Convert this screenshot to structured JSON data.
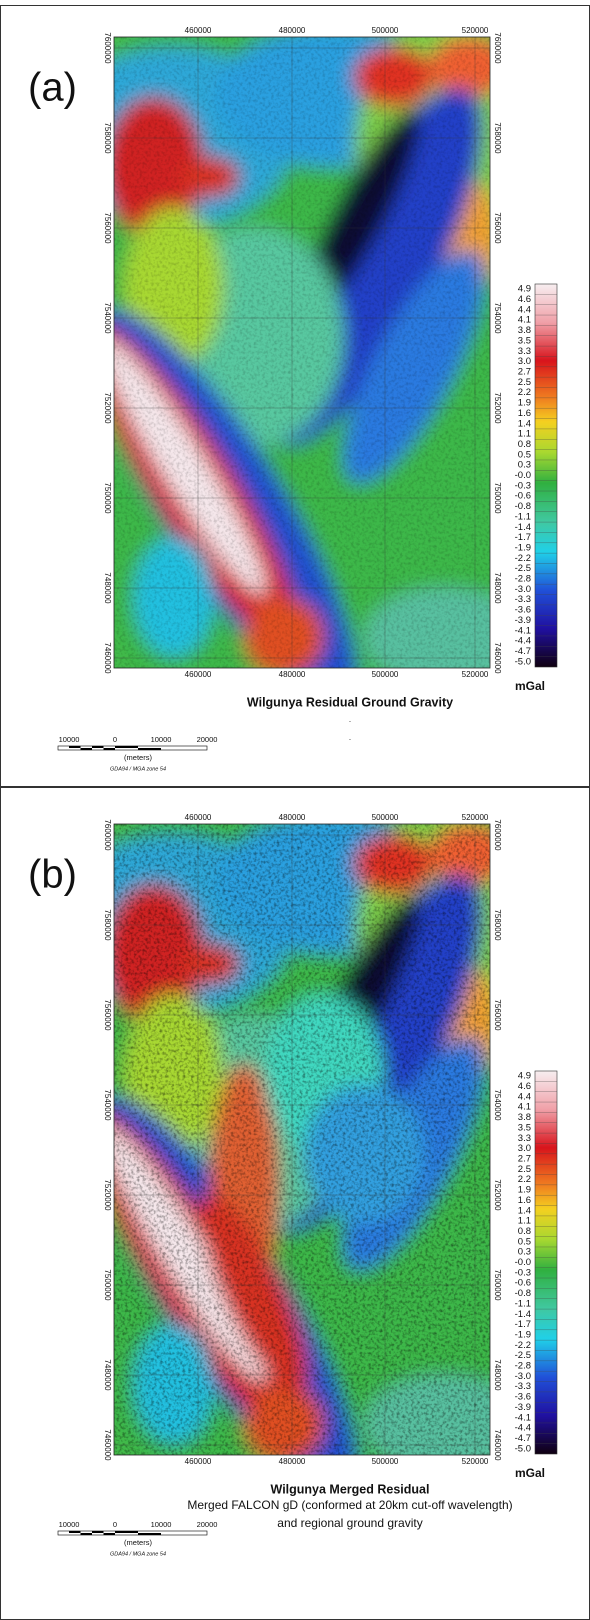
{
  "panels": [
    {
      "label": "(a)",
      "x_ticks": [
        "460000",
        "480000",
        "500000",
        "520000"
      ],
      "y_ticks": [
        "7600000",
        "7580000",
        "7560000",
        "7540000",
        "7520000",
        "7500000",
        "7480000",
        "7460000"
      ],
      "colorbar": {
        "labels": [
          "4.9",
          "4.6",
          "4.4",
          "4.1",
          "3.8",
          "3.5",
          "3.3",
          "3.0",
          "2.7",
          "2.5",
          "2.2",
          "1.9",
          "1.6",
          "1.4",
          "1.1",
          "0.8",
          "0.5",
          "0.3",
          "-0.0",
          "-0.3",
          "-0.6",
          "-0.8",
          "-1.1",
          "-1.4",
          "-1.7",
          "-1.9",
          "-2.2",
          "-2.5",
          "-2.8",
          "-3.0",
          "-3.3",
          "-3.6",
          "-3.9",
          "-4.1",
          "-4.4",
          "-4.7",
          "-5.0"
        ],
        "unit": "mGal"
      },
      "title": "Wilgunya Residual Ground Gravity",
      "notes": [
        ".",
        "."
      ],
      "scale_bar": {
        "labels": [
          "10000",
          "0",
          "10000",
          "20000"
        ],
        "unit": "(meters)",
        "projection": "GDA94 / MGA zone 54"
      }
    },
    {
      "label": "(b)",
      "x_ticks": [
        "460000",
        "480000",
        "500000",
        "520000"
      ],
      "y_ticks": [
        "7600000",
        "7580000",
        "7560000",
        "7540000",
        "7520000",
        "7500000",
        "7480000",
        "7460000"
      ],
      "colorbar": {
        "labels": [
          "4.9",
          "4.6",
          "4.4",
          "4.1",
          "3.8",
          "3.5",
          "3.3",
          "3.0",
          "2.7",
          "2.5",
          "2.2",
          "1.9",
          "1.6",
          "1.4",
          "1.1",
          "0.8",
          "0.5",
          "0.3",
          "-0.0",
          "-0.3",
          "-0.6",
          "-0.8",
          "-1.1",
          "-1.4",
          "-1.7",
          "-1.9",
          "-2.2",
          "-2.5",
          "-2.8",
          "-3.0",
          "-3.3",
          "-3.6",
          "-3.9",
          "-4.1",
          "-4.4",
          "-4.7",
          "-5.0"
        ],
        "unit": "mGal"
      },
      "title": "Wilgunya Merged Residual",
      "notes": [
        "Merged FALCON gD (conformed at 20km cut-off wavelength)",
        "and regional ground gravity"
      ],
      "scale_bar": {
        "labels": [
          "10000",
          "0",
          "10000",
          "20000"
        ],
        "unit": "(meters)",
        "projection": "GDA94 / MGA zone 54"
      }
    }
  ]
}
